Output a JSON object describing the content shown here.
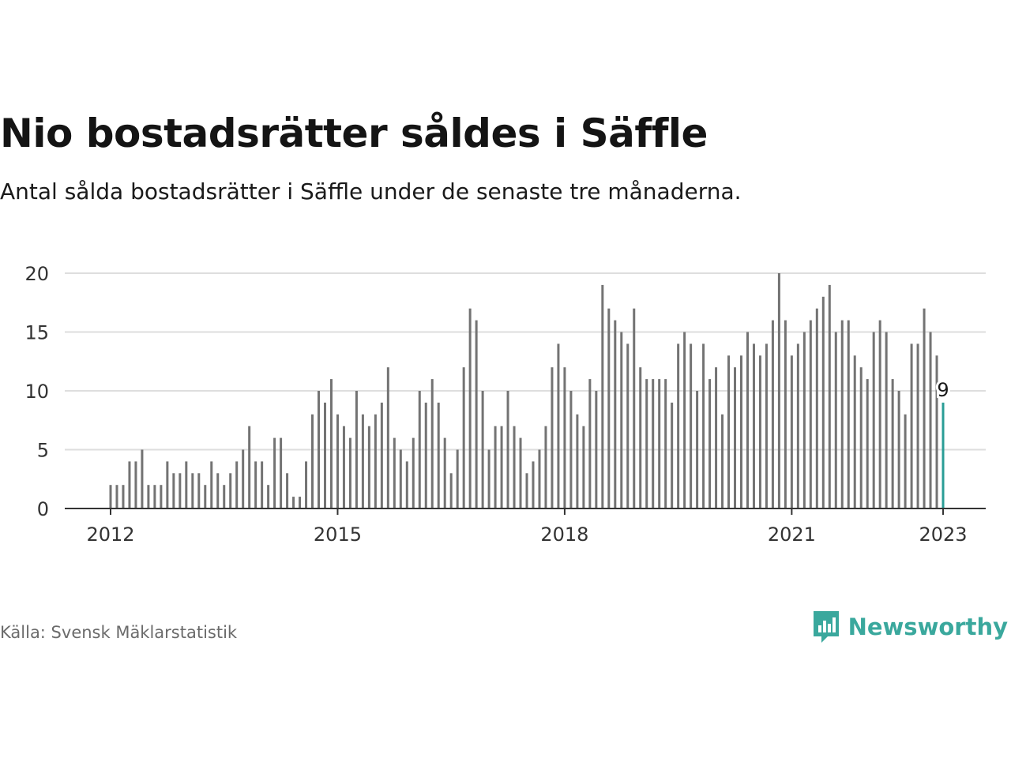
{
  "title": "Nio bostadsrätter såldes i Säffle",
  "subtitle": "Antal sålda bostadsrätter i Säffle under de senaste tre månaderna.",
  "source": "Källa: Svensk Mäklarstatistik",
  "brand": {
    "name": "Newsworthy",
    "icon": "newsworthy-logo-icon",
    "color": "#3aa89d"
  },
  "chart_data": {
    "type": "bar",
    "title": "Nio bostadsrätter såldes i Säffle",
    "subtitle": "Antal sålda bostadsrätter i Säffle under de senaste tre månaderna.",
    "xlabel": "",
    "ylabel": "",
    "ylim": [
      0,
      20
    ],
    "yticks": [
      0,
      5,
      10,
      15,
      20
    ],
    "xticks": [
      "2012",
      "2015",
      "2018",
      "2021",
      "2023"
    ],
    "grid": true,
    "colors": {
      "bar": "#737373",
      "highlight": "#2a9d96",
      "grid": "#dedede",
      "axis": "#333333"
    },
    "highlight": {
      "month": "2023-01",
      "value": 9,
      "label": "9"
    },
    "series": [
      {
        "start_month": "2012-01",
        "end_month": "2023-01",
        "frequency": "monthly",
        "values": [
          2,
          2,
          2,
          4,
          4,
          5,
          2,
          2,
          2,
          4,
          3,
          3,
          4,
          3,
          3,
          2,
          4,
          3,
          2,
          3,
          4,
          5,
          7,
          4,
          4,
          2,
          6,
          6,
          3,
          1,
          1,
          4,
          8,
          10,
          9,
          11,
          8,
          7,
          6,
          10,
          8,
          7,
          8,
          9,
          12,
          6,
          5,
          4,
          6,
          10,
          9,
          11,
          9,
          6,
          3,
          5,
          12,
          17,
          16,
          10,
          5,
          7,
          7,
          10,
          7,
          6,
          3,
          4,
          5,
          7,
          12,
          14,
          12,
          10,
          8,
          7,
          11,
          10,
          19,
          17,
          16,
          15,
          14,
          17,
          12,
          11,
          11,
          11,
          11,
          9,
          14,
          15,
          14,
          10,
          14,
          11,
          12,
          8,
          13,
          12,
          13,
          15,
          14,
          13,
          14,
          16,
          20,
          16,
          13,
          14,
          15,
          16,
          17,
          18,
          19,
          15,
          16,
          16,
          13,
          12,
          11,
          15,
          16,
          15,
          11,
          10,
          8,
          14,
          14,
          17,
          15,
          13,
          9
        ]
      }
    ]
  }
}
